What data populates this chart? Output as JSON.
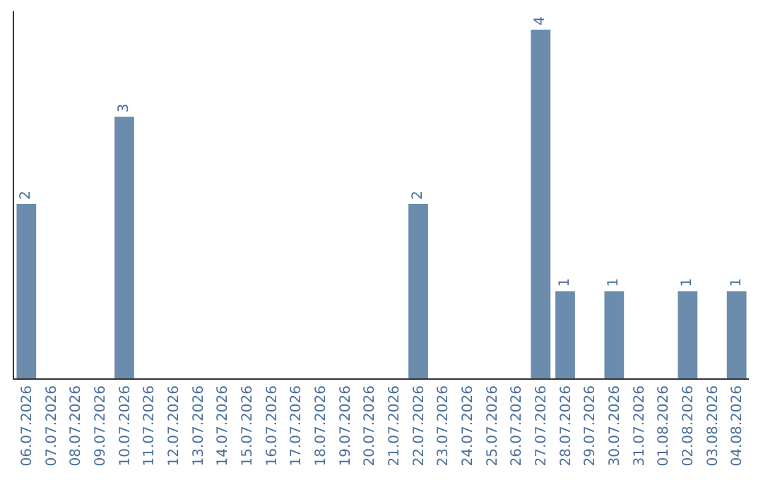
{
  "chart_data": {
    "type": "bar",
    "categories": [
      "06.07.2026",
      "07.07.2026",
      "08.07.2026",
      "09.07.2026",
      "10.07.2026",
      "11.07.2026",
      "12.07.2026",
      "13.07.2026",
      "14.07.2026",
      "15.07.2026",
      "16.07.2026",
      "17.07.2026",
      "18.07.2026",
      "19.07.2026",
      "20.07.2026",
      "21.07.2026",
      "22.07.2026",
      "23.07.2026",
      "24.07.2026",
      "25.07.2026",
      "26.07.2026",
      "27.07.2026",
      "28.07.2026",
      "29.07.2026",
      "30.07.2026",
      "31.07.2026",
      "01.08.2026",
      "02.08.2026",
      "03.08.2026",
      "04.08.2026"
    ],
    "values": [
      2,
      0,
      0,
      0,
      3,
      0,
      0,
      0,
      0,
      0,
      0,
      0,
      0,
      0,
      0,
      0,
      2,
      0,
      0,
      0,
      0,
      4,
      1,
      0,
      1,
      0,
      0,
      1,
      0,
      1
    ],
    "value_labels": [
      "2",
      null,
      null,
      null,
      "3",
      null,
      null,
      null,
      null,
      null,
      null,
      null,
      null,
      null,
      null,
      null,
      "2",
      null,
      null,
      null,
      null,
      "4",
      "1",
      null,
      "1",
      null,
      null,
      "1",
      null,
      "1"
    ],
    "color": "#6b8cad",
    "grid": false,
    "legend": false,
    "tick_labels": "x"
  }
}
